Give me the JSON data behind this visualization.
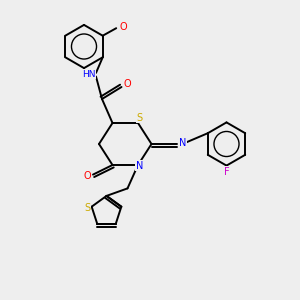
{
  "bg_color": "#eeeeee",
  "bond_color": "#000000",
  "atom_colors": {
    "N": "#0000ff",
    "O": "#ff0000",
    "S": "#ccaa00",
    "F": "#cc00cc",
    "C": "#000000"
  },
  "lw": 1.4,
  "ring_lw": 1.0
}
